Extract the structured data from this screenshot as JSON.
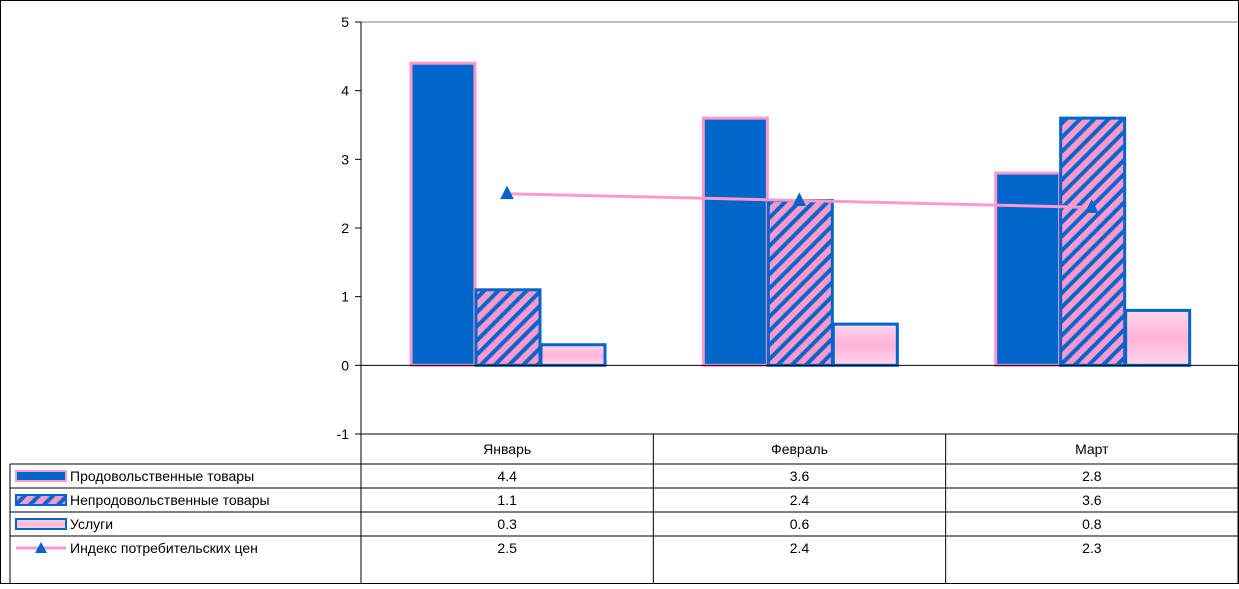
{
  "chart_data": {
    "type": "bar",
    "categories": [
      "Январь",
      "Февраль",
      "Март"
    ],
    "ylim": [
      -1,
      5
    ],
    "yticks": [
      "-1",
      "0",
      "1",
      "2",
      "3",
      "4",
      "5"
    ],
    "grid": false,
    "legend_placement": "data-table-left",
    "series": [
      {
        "name": "Продовольственные товары",
        "type": "bar",
        "values": [
          4.4,
          3.6,
          2.8
        ],
        "labels": [
          "4.4",
          "3.6",
          "2.8"
        ]
      },
      {
        "name": "Непродовольственные товары",
        "type": "bar",
        "values": [
          1.1,
          2.4,
          3.6
        ],
        "labels": [
          "1.1",
          "2.4",
          "3.6"
        ]
      },
      {
        "name": "Услуги",
        "type": "bar",
        "values": [
          0.3,
          0.6,
          0.8
        ],
        "labels": [
          "0.3",
          "0.6",
          "0.8"
        ]
      },
      {
        "name": "Индекс потребительских цен",
        "type": "line",
        "marker": "triangle",
        "values": [
          2.5,
          2.4,
          2.3
        ],
        "labels": [
          "2.5",
          "2.4",
          "2.3"
        ]
      }
    ]
  },
  "colors": {
    "food_fill": "#0066cc",
    "food_border": "#ff99cc",
    "nonfood_stripe": "#ff99cc",
    "nonfood_bg": "#0066cc",
    "nonfood_border": "#0066cc",
    "services_fill": "#ffb3d9",
    "services_border": "#0066cc",
    "cpi_line": "#ff99cc",
    "cpi_marker": "#0066cc"
  }
}
